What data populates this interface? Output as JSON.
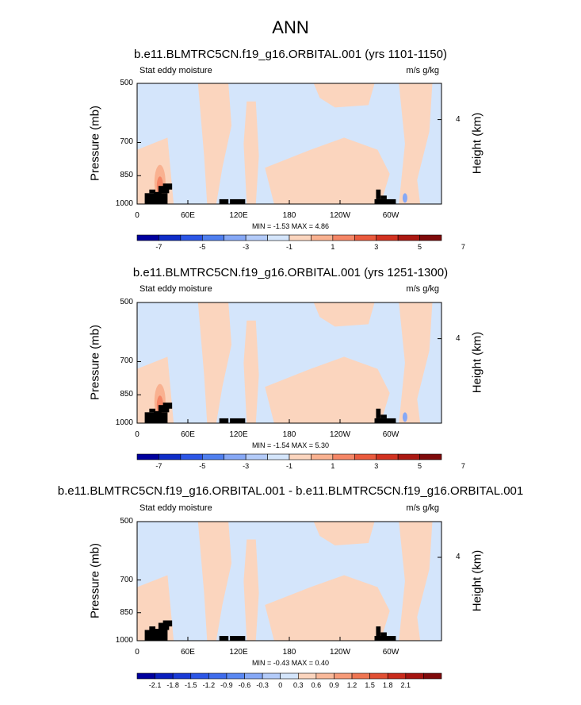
{
  "main_title": "ANN",
  "colors": {
    "base": "#d4e5fb",
    "pos": "#fbd5be",
    "terrain": "#000000",
    "frame": "#000000"
  },
  "chart_data": [
    {
      "type": "contour",
      "title": "b.e11.BLMTRC5CN.f19_g16.ORBITAL.001 (yrs 1101-1150)",
      "left_label": "Stat eddy moisture",
      "right_label": "m/s g/kg",
      "ylabel": "Pressure (mb)",
      "y2label": "Height (km)",
      "y_ticks": [
        "500",
        "700",
        "850",
        "1000"
      ],
      "y2_ticks": [
        "4"
      ],
      "x_ticks": [
        "0",
        "60E",
        "120E",
        "180",
        "120W",
        "60W"
      ],
      "minmax": "MIN = -1.53 MAX = 4.86",
      "colorbar_labels": [
        "-7",
        "-5",
        "-3",
        "-1",
        "1",
        "3",
        "5",
        "7"
      ],
      "colorbar_colors": [
        "#00009e",
        "#0f2dc8",
        "#2c56e6",
        "#4f7fef",
        "#86a8f6",
        "#b3cbf9",
        "#d4e5fb",
        "#fbd5be",
        "#f9b190",
        "#f58666",
        "#ea5a3d",
        "#d23220",
        "#ab1812",
        "#7f0a0b"
      ]
    },
    {
      "type": "contour",
      "title": "b.e11.BLMTRC5CN.f19_g16.ORBITAL.001 (yrs 1251-1300)",
      "left_label": "Stat eddy moisture",
      "right_label": "m/s g/kg",
      "ylabel": "Pressure (mb)",
      "y2label": "Height (km)",
      "y_ticks": [
        "500",
        "700",
        "850",
        "1000"
      ],
      "y2_ticks": [
        "4"
      ],
      "x_ticks": [
        "0",
        "60E",
        "120E",
        "180",
        "120W",
        "60W"
      ],
      "minmax": "MIN = -1.54 MAX = 5.30",
      "colorbar_labels": [
        "-7",
        "-5",
        "-3",
        "-1",
        "1",
        "3",
        "5",
        "7"
      ],
      "colorbar_colors": [
        "#00009e",
        "#0f2dc8",
        "#2c56e6",
        "#4f7fef",
        "#86a8f6",
        "#b3cbf9",
        "#d4e5fb",
        "#fbd5be",
        "#f9b190",
        "#f58666",
        "#ea5a3d",
        "#d23220",
        "#ab1812",
        "#7f0a0b"
      ]
    },
    {
      "type": "contour",
      "title": "b.e11.BLMTRC5CN.f19_g16.ORBITAL.001 - b.e11.BLMTRC5CN.f19_g16.ORBITAL.001",
      "left_label": "Stat eddy moisture",
      "right_label": "m/s g/kg",
      "ylabel": "Pressure (mb)",
      "y2label": "Height (km)",
      "y_ticks": [
        "500",
        "700",
        "850",
        "1000"
      ],
      "y2_ticks": [
        "4"
      ],
      "x_ticks": [
        "0",
        "60E",
        "120E",
        "180",
        "120W",
        "60W"
      ],
      "minmax": "MIN = -0.43 MAX = 0.40",
      "colorbar_labels": [
        "-2.1",
        "-1.8",
        "-1.5",
        "-1.2",
        "-0.9",
        "-0.6",
        "-0.3",
        "0",
        "0.3",
        "0.6",
        "0.9",
        "1.2",
        "1.5",
        "1.8",
        "2.1"
      ],
      "colorbar_colors": [
        "#00009e",
        "#0a1fbe",
        "#1a3bd6",
        "#2c56e6",
        "#3f6cec",
        "#5a88f2",
        "#86a8f6",
        "#b3cbf9",
        "#d4e5fb",
        "#fbd5be",
        "#f9b99a",
        "#f69a78",
        "#ef7552",
        "#e14f33",
        "#c92b1c",
        "#a51410",
        "#7f0a0b"
      ]
    }
  ]
}
